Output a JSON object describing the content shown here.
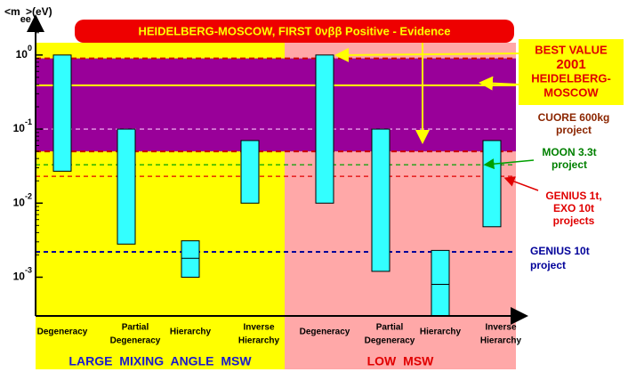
{
  "chart_data": {
    "type": "floating_bar",
    "title": "HEIDELBERG-MOSCOW, FIRST  0νββ  Positive - Evidence",
    "ylabel": {
      "main": "<m",
      "sub": "ee",
      "unit": ">(eV)"
    },
    "log_scale": true,
    "ylim": [
      0.0003,
      2.1
    ],
    "yticks": [
      {
        "value": 1,
        "label": "10^0"
      },
      {
        "value": 0.1,
        "label": "10^-1"
      },
      {
        "value": 0.01,
        "label": "10^-2"
      },
      {
        "value": 0.001,
        "label": "10^-3"
      }
    ],
    "categories": [
      [
        "Degeneracy"
      ],
      [
        "Partial",
        "Degeneracy"
      ],
      [
        "Hierarchy"
      ],
      [
        "Inverse",
        "Hierarchy"
      ],
      [
        "Degeneracy"
      ],
      [
        "Partial",
        "Degeneracy"
      ],
      [
        "Hierarchy"
      ],
      [
        "Inverse",
        "Hierarchy"
      ]
    ],
    "high": [
      1.0,
      0.1,
      0.0031,
      0.07,
      1.0,
      0.1,
      0.0023,
      0.07
    ],
    "low": [
      0.027,
      0.0028,
      0.001,
      0.01,
      0.01,
      0.0012,
      0.0003,
      0.0048
    ],
    "mid": [
      null,
      null,
      0.0018,
      null,
      null,
      null,
      0.0008,
      null
    ],
    "color": "#33ffff",
    "groups": [
      {
        "name": "LARGE MIXING ANGLE MSW",
        "color": "#ffff00",
        "text_color": "#1a1acc"
      },
      {
        "name": "LOW MSW",
        "color": "#ffa8a8",
        "text_color": "#e00000"
      }
    ],
    "band": {
      "low": 0.05,
      "high": 0.9,
      "best": 0.39,
      "color": "#990099"
    },
    "lines": [
      {
        "value": 0.1,
        "color": "#e8a0e8",
        "label": [
          "CUORE 600kg",
          "project"
        ],
        "text_color": "#8b2500"
      },
      {
        "value": 0.033,
        "color": "#00a000",
        "label": [
          "MOON 3.3t",
          "project"
        ],
        "text_color": "#008000"
      },
      {
        "value": 0.023,
        "color": "#e00000",
        "label": [
          "GENIUS 1t,",
          "EXO 10t",
          "projects"
        ],
        "text_color": "#e00000"
      },
      {
        "value": 0.0022,
        "color": "#000099",
        "label": [
          "GENIUS 10t",
          "project"
        ],
        "text_color": "#000099"
      }
    ],
    "best_label": [
      "BEST VALUE",
      "2001",
      "HEIDELBERG-",
      "MOSCOW"
    ]
  }
}
